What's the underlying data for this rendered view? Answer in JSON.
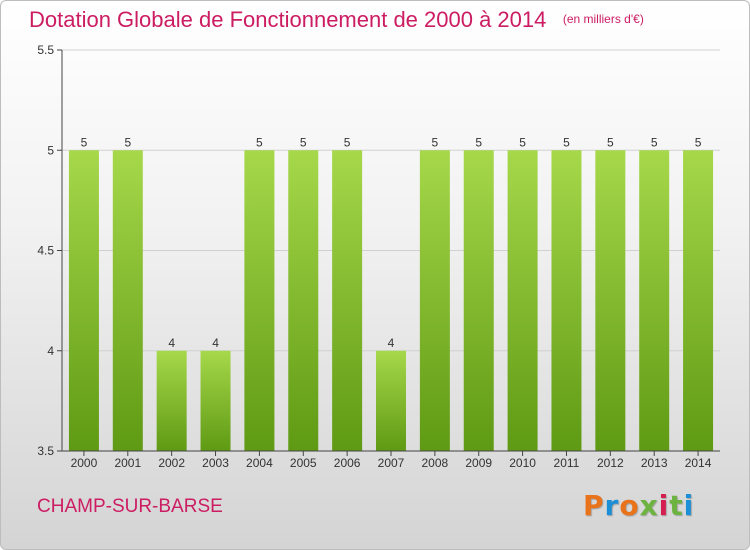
{
  "header": {
    "title": "Dotation Globale de Fonctionnement de 2000 à 2014",
    "unit": "(en milliers d'€)"
  },
  "footer": {
    "location": "CHAMP-SUR-BARSE",
    "brand": "Proxiti",
    "brand_letter_colors": [
      "#e8731a",
      "#1c8fd6",
      "#e8731a",
      "#6cb33f",
      "#d41e4f",
      "#6cb33f",
      "#1c8fd6"
    ]
  },
  "colors": {
    "title": "#cc1c62",
    "bar_light": "#a6d84a",
    "bar_dark": "#5f9a14",
    "axis": "#444444",
    "grid": "#d0d0d0"
  },
  "chart_data": {
    "type": "bar",
    "title": "Dotation Globale de Fonctionnement de 2000 à 2014",
    "xlabel": "",
    "ylabel": "",
    "categories": [
      "2000",
      "2001",
      "2002",
      "2003",
      "2004",
      "2005",
      "2006",
      "2007",
      "2008",
      "2009",
      "2010",
      "2011",
      "2012",
      "2013",
      "2014"
    ],
    "values": [
      5,
      5,
      4,
      4,
      5,
      5,
      5,
      4,
      5,
      5,
      5,
      5,
      5,
      5,
      5
    ],
    "data_labels": [
      "5",
      "5",
      "4",
      "4",
      "5",
      "5",
      "5",
      "4",
      "5",
      "5",
      "5",
      "5",
      "5",
      "5",
      "5"
    ],
    "ylim": [
      3.5,
      5.5
    ],
    "yticks": [
      3.5,
      4,
      4.5,
      5,
      5.5
    ],
    "ytick_labels": [
      "3.5",
      "4",
      "4.5",
      "5",
      "5.5"
    ],
    "grid": true,
    "legend": "none"
  }
}
